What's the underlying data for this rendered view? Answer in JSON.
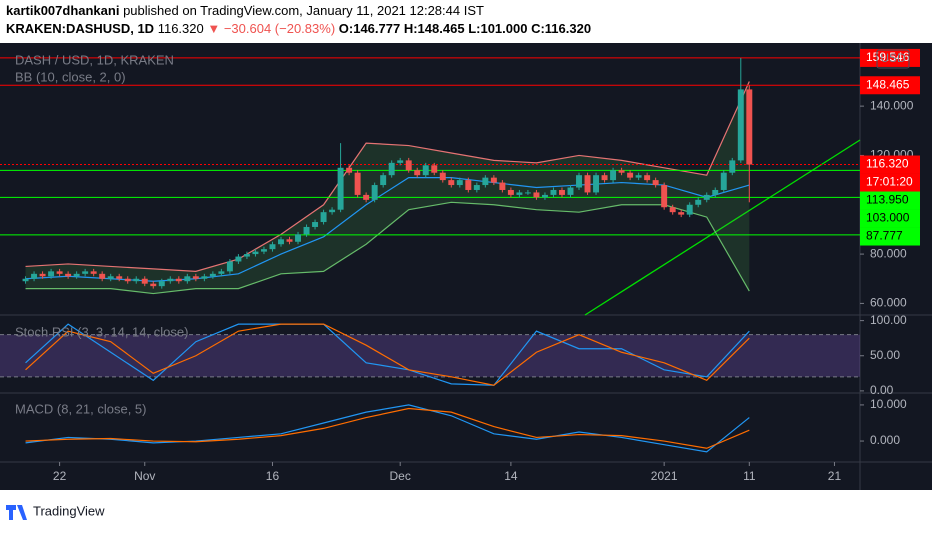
{
  "header": {
    "author": "kartik007dhankani",
    "published": "published on TradingView.com, January 11, 2021 12:28:44 IST",
    "symbol": "KRAKEN:DASHUSD, 1D",
    "last": "116.320",
    "change": "▼ −30.604 (−20.83%)",
    "open": "O:146.777",
    "high": "H:148.465",
    "low": "L:101.000",
    "close": "C:116.320"
  },
  "chart_data": {
    "type": "candlestick",
    "title": "DASH / USD, 1D, KRAKEN",
    "currency": "USD",
    "up_color": "#26a69a",
    "down_color": "#ef5350",
    "open": [
      69,
      70,
      72,
      71,
      73,
      72,
      71,
      72,
      73,
      72,
      70,
      71,
      70,
      69,
      70,
      68,
      67,
      69,
      70,
      69,
      71,
      70,
      71,
      72,
      73,
      77,
      79,
      80,
      81,
      82,
      84,
      86,
      85,
      88,
      91,
      93,
      97,
      98,
      115,
      113,
      104,
      102,
      108,
      112,
      117,
      118,
      114,
      112,
      116,
      113,
      110,
      108,
      110,
      106,
      108,
      111,
      109,
      106,
      104,
      105,
      105,
      103,
      104,
      106,
      104,
      107,
      112,
      105,
      112,
      110,
      114,
      113,
      111,
      112,
      110,
      108,
      99,
      97,
      96,
      100,
      102,
      104,
      106,
      113,
      118,
      146.777
    ],
    "high": [
      71,
      73,
      73,
      74,
      74,
      73,
      73,
      74,
      74,
      73,
      72,
      72,
      71,
      71,
      71,
      69,
      70,
      71,
      71,
      72,
      72,
      72,
      73,
      74,
      78,
      80,
      81,
      82,
      83,
      85,
      87,
      87,
      89,
      92,
      94,
      98,
      99,
      125,
      116,
      114,
      105,
      109,
      113,
      118,
      119,
      119,
      115,
      117,
      117,
      114,
      111,
      111,
      111,
      109,
      112,
      112,
      110,
      107,
      106,
      106,
      106,
      105,
      107,
      107,
      108,
      113,
      113,
      113,
      113,
      115,
      115,
      114,
      113,
      113,
      111,
      109,
      100,
      98,
      101,
      103,
      105,
      107,
      114,
      119,
      159.546,
      148.465
    ],
    "low": [
      68,
      69,
      70,
      70,
      71,
      70,
      70,
      71,
      71,
      69,
      69,
      69,
      68,
      68,
      67,
      66,
      66,
      68,
      68,
      68,
      69,
      69,
      70,
      71,
      72,
      76,
      78,
      79,
      80,
      81,
      83,
      84,
      84,
      87,
      90,
      92,
      96,
      97,
      112,
      103,
      101,
      101,
      107,
      111,
      116,
      113,
      111,
      111,
      112,
      109,
      107,
      107,
      105,
      105,
      107,
      108,
      105,
      103,
      103,
      104,
      102,
      102,
      103,
      103,
      103,
      106,
      104,
      104,
      109,
      109,
      112,
      110,
      110,
      109,
      107,
      98,
      96,
      95,
      95,
      99,
      101,
      103,
      105,
      112,
      117,
      101
    ],
    "close": [
      70,
      72,
      71,
      73,
      72,
      71,
      72,
      73,
      72,
      70,
      71,
      70,
      69,
      70,
      68,
      67,
      69,
      70,
      69,
      71,
      70,
      71,
      72,
      73,
      77,
      79,
      80,
      81,
      82,
      84,
      86,
      85,
      88,
      91,
      93,
      97,
      98,
      115,
      113,
      104,
      102,
      108,
      112,
      117,
      118,
      114,
      112,
      116,
      113,
      110,
      108,
      110,
      106,
      108,
      111,
      109,
      106,
      104,
      105,
      105,
      103,
      104,
      106,
      104,
      107,
      112,
      105,
      112,
      110,
      114,
      113,
      111,
      112,
      110,
      108,
      99,
      97,
      96,
      100,
      102,
      104,
      106,
      113,
      118,
      146.777,
      116.32
    ],
    "xlim": [
      -3,
      98
    ],
    "xticks": [
      {
        "value": 4,
        "label": "22"
      },
      {
        "value": 14,
        "label": "Nov"
      },
      {
        "value": 29,
        "label": "16"
      },
      {
        "value": 44,
        "label": "Dec"
      },
      {
        "value": 57,
        "label": "14"
      },
      {
        "value": 75,
        "label": "2021"
      },
      {
        "value": 85,
        "label": "11"
      },
      {
        "value": 95,
        "label": "21"
      }
    ],
    "ylim": [
      55.3,
      165.6
    ],
    "yticks": [
      {
        "value": 140,
        "label": "140.000"
      },
      {
        "value": 120,
        "label": "120.000"
      },
      {
        "value": 100,
        "label": "100.000"
      },
      {
        "value": 80,
        "label": "80.000"
      },
      {
        "value": 60,
        "label": "60.000"
      }
    ],
    "bb": {
      "name": "BB (10, close, 2, 0)",
      "x": [
        0,
        5,
        10,
        15,
        20,
        25,
        30,
        35,
        40,
        45,
        50,
        55,
        60,
        65,
        70,
        75,
        80,
        85
      ],
      "upper": [
        75,
        76,
        75,
        74,
        73,
        78,
        88,
        100,
        125,
        124,
        121,
        118,
        117,
        120,
        118,
        115,
        112,
        150
      ],
      "basis": [
        70,
        71,
        70,
        69,
        70,
        72,
        80,
        87,
        100,
        111,
        111,
        109,
        107,
        108,
        109,
        108,
        103,
        108
      ],
      "lower": [
        66,
        66,
        66,
        64,
        66,
        66,
        72,
        73,
        84,
        98,
        101,
        100,
        98,
        97,
        100,
        100,
        95,
        65
      ]
    },
    "levels": [
      {
        "value": 159.546,
        "label": "159.546",
        "color": "#ff0000"
      },
      {
        "value": 148.465,
        "label": "148.465",
        "color": "#ff0000"
      },
      {
        "value": 116.32,
        "label": "116.320",
        "color": "#ff0000",
        "countdown": "17:01:20"
      },
      {
        "value": 113.95,
        "label": "113.950",
        "color": "#00ff00"
      },
      {
        "value": 103,
        "label": "103.000",
        "color": "#00ff00"
      },
      {
        "value": 87.777,
        "label": "87.777",
        "color": "#00ff00"
      }
    ],
    "stoch": {
      "name": "Stoch RSI (3, 3, 14, 14, close)",
      "x": [
        0,
        5,
        10,
        15,
        20,
        25,
        30,
        35,
        40,
        45,
        50,
        55,
        60,
        65,
        70,
        75,
        80,
        85
      ],
      "k": [
        40,
        95,
        55,
        15,
        70,
        95,
        95,
        95,
        40,
        30,
        10,
        8,
        85,
        60,
        60,
        30,
        20,
        85
      ],
      "d": [
        30,
        85,
        70,
        25,
        50,
        85,
        95,
        95,
        65,
        30,
        20,
        8,
        55,
        80,
        55,
        40,
        15,
        75
      ],
      "ylim": [
        -3,
        108
      ],
      "yticks": [
        {
          "value": 100,
          "label": "100.00"
        },
        {
          "value": 50,
          "label": "50.00"
        },
        {
          "value": 0,
          "label": "0.00"
        }
      ],
      "band": [
        20,
        80
      ]
    },
    "macd": {
      "name": "MACD (8, 21, close, 5)",
      "x": [
        0,
        5,
        10,
        15,
        20,
        25,
        30,
        35,
        40,
        45,
        50,
        55,
        60,
        65,
        70,
        75,
        80,
        85
      ],
      "macd": [
        -0.5,
        1,
        0.5,
        -0.5,
        0,
        1,
        2,
        5,
        8,
        10,
        7,
        2,
        0.5,
        2.5,
        1,
        -1,
        -3,
        6.5
      ],
      "signal": [
        0,
        0.5,
        0.7,
        0,
        -0.2,
        0.5,
        1.5,
        3.5,
        6.5,
        9,
        8,
        4,
        1,
        1.8,
        1.5,
        0,
        -2,
        3
      ],
      "ylim": [
        -5.8,
        13.3
      ],
      "yticks": [
        {
          "value": 10,
          "label": "10.000"
        },
        {
          "value": 0,
          "label": "0.000"
        }
      ]
    }
  },
  "footer": {
    "brand": "TradingView"
  }
}
